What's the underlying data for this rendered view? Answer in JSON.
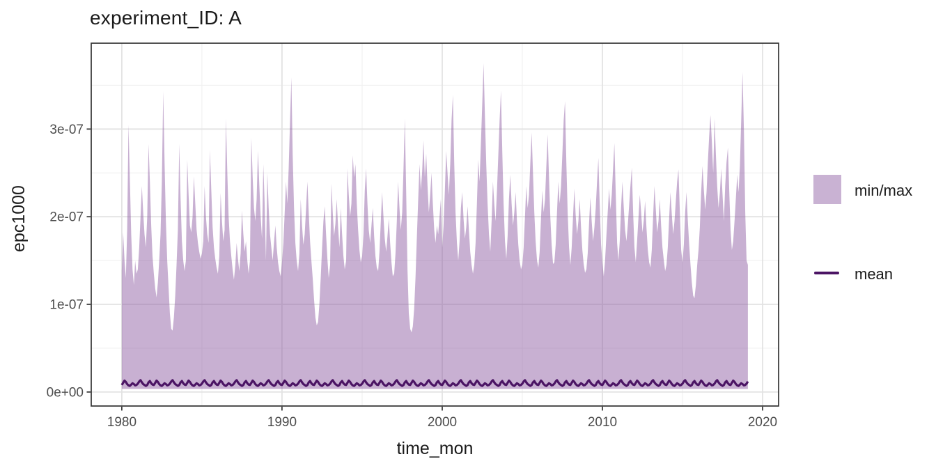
{
  "chart_data": {
    "type": "area",
    "title": "experiment_ID: A",
    "xlabel": "time_mon",
    "ylabel": "epc1000",
    "legend_position": "right",
    "grid": "major+minor",
    "xlim": [
      1978.09,
      2021.0
    ],
    "ylim_e9": [
      -16,
      398
    ],
    "x_ticks": {
      "values": [
        1980,
        1990,
        2000,
        2010,
        2020
      ],
      "labels": [
        "1980",
        "1990",
        "2000",
        "2010",
        "2020"
      ]
    },
    "x_minor_ticks": [
      1985,
      1995,
      2005,
      2015
    ],
    "y_ticks": {
      "values_e9": [
        0,
        100,
        200,
        300
      ],
      "labels": [
        "0e+00",
        "1e-07",
        "2e-07",
        "3e-07"
      ]
    },
    "y_minor_ticks_e9": [
      50,
      150,
      250,
      350
    ],
    "y_unit_note": "values stored in 1e-9 units; axis shows scientific notation",
    "x_start": 1980.0,
    "x_step_years": 0.0833333,
    "legend": [
      {
        "label": "min/max",
        "type": "fill"
      },
      {
        "label": "mean",
        "type": "line"
      }
    ],
    "series": {
      "max_e9": [
        139,
        182,
        150,
        130,
        185,
        305,
        245,
        180,
        140,
        122,
        150,
        135,
        140,
        165,
        200,
        235,
        205,
        180,
        165,
        200,
        283,
        240,
        190,
        155,
        135,
        118,
        108,
        125,
        150,
        180,
        240,
        343,
        262,
        195,
        150,
        120,
        90,
        72,
        70,
        85,
        110,
        145,
        185,
        283,
        220,
        172,
        150,
        138,
        150,
        265,
        225,
        190,
        182,
        200,
        246,
        215,
        185,
        170,
        160,
        152,
        158,
        172,
        235,
        200,
        180,
        170,
        276,
        230,
        188,
        165,
        152,
        142,
        135,
        155,
        227,
        195,
        172,
        185,
        312,
        250,
        200,
        172,
        155,
        140,
        128,
        145,
        170,
        152,
        138,
        158,
        207,
        180,
        160,
        172,
        150,
        135,
        150,
        290,
        245,
        210,
        195,
        220,
        275,
        235,
        200,
        175,
        260,
        215,
        150,
        250,
        210,
        180,
        165,
        150,
        170,
        190,
        165,
        148,
        138,
        132,
        148,
        170,
        205,
        240,
        215,
        255,
        310,
        359,
        270,
        210,
        170,
        150,
        138,
        158,
        220,
        190,
        168,
        180,
        210,
        240,
        205,
        172,
        150,
        130,
        105,
        85,
        76,
        80,
        100,
        130,
        165,
        195,
        212,
        180,
        152,
        130,
        145,
        238,
        205,
        178,
        192,
        220,
        188,
        165,
        210,
        180,
        155,
        140,
        150,
        255,
        225,
        200,
        215,
        270,
        245,
        260,
        215,
        185,
        162,
        148,
        155,
        180,
        230,
        255,
        215,
        185,
        170,
        190,
        210,
        178,
        155,
        142,
        138,
        160,
        195,
        228,
        200,
        175,
        160,
        178,
        198,
        170,
        148,
        132,
        135,
        158,
        195,
        240,
        210,
        185,
        205,
        255,
        312,
        230,
        140,
        90,
        72,
        68,
        75,
        95,
        130,
        175,
        220,
        260,
        230,
        252,
        287,
        245,
        272,
        235,
        205,
        225,
        250,
        215,
        185,
        170,
        190,
        180,
        200,
        220,
        165,
        190,
        230,
        275,
        250,
        225,
        260,
        310,
        339,
        262,
        205,
        170,
        150,
        172,
        210,
        228,
        198,
        175,
        188,
        212,
        185,
        160,
        145,
        135,
        145,
        170,
        215,
        265,
        240,
        285,
        330,
        375,
        315,
        260,
        215,
        180,
        160,
        195,
        240,
        215,
        195,
        230,
        270,
        310,
        344,
        275,
        215,
        172,
        152,
        178,
        220,
        248,
        215,
        190,
        205,
        228,
        195,
        168,
        150,
        140,
        145,
        165,
        200,
        235,
        210,
        225,
        262,
        296,
        250,
        205,
        172,
        150,
        142,
        160,
        198,
        230,
        205,
        220,
        258,
        294,
        245,
        200,
        168,
        146,
        148,
        168,
        205,
        240,
        215,
        235,
        272,
        310,
        332,
        262,
        205,
        165,
        145,
        165,
        200,
        232,
        202,
        180,
        195,
        220,
        188,
        162,
        146,
        136,
        140,
        158,
        192,
        222,
        195,
        172,
        188,
        210,
        240,
        267,
        215,
        168,
        148,
        132,
        150,
        178,
        205,
        232,
        208,
        225,
        255,
        284,
        228,
        170,
        150,
        172,
        210,
        240,
        210,
        185,
        172,
        190,
        212,
        235,
        256,
        205,
        165,
        148,
        172,
        198,
        225,
        205,
        182,
        196,
        218,
        188,
        162,
        148,
        142,
        162,
        200,
        235,
        208,
        182,
        195,
        220,
        190,
        165,
        150,
        138,
        145,
        165,
        198,
        228,
        202,
        180,
        195,
        218,
        240,
        254,
        205,
        162,
        148,
        168,
        205,
        228,
        195,
        168,
        145,
        125,
        110,
        107,
        122,
        145,
        162,
        188,
        228,
        258,
        230,
        208,
        228,
        262,
        292,
        316,
        285,
        250,
        312,
        272,
        235,
        210,
        228,
        255,
        225,
        195,
        235,
        262,
        279,
        230,
        185,
        162,
        172,
        195,
        222,
        248,
        228,
        258,
        310,
        365,
        298,
        205,
        150,
        145
      ],
      "min_e9": 3.5,
      "mean_cycle_e9": [
        8,
        10.5,
        13,
        11.5,
        9,
        7.5,
        7,
        8.5,
        10,
        9,
        7.5,
        8,
        9.5,
        12,
        13.5,
        11,
        9,
        8,
        7,
        8,
        11,
        12.5,
        10,
        8.5
      ]
    },
    "colors": {
      "title_text": "#1A1A1A",
      "axis_title_text": "#1A1A1A",
      "tick_label_text": "#4D4D4D",
      "tick_mark": "#333333",
      "panel_border": "#333333",
      "grid_major": "#E3E3E3",
      "grid_minor": "#F0F0F0",
      "ribbon_fill": "#8C59A0",
      "ribbon_opacity": 0.48,
      "ribbon_solid": "#C9B2D3",
      "mean_line": "#4B1464",
      "panel_background": "#FFFFFF"
    }
  }
}
